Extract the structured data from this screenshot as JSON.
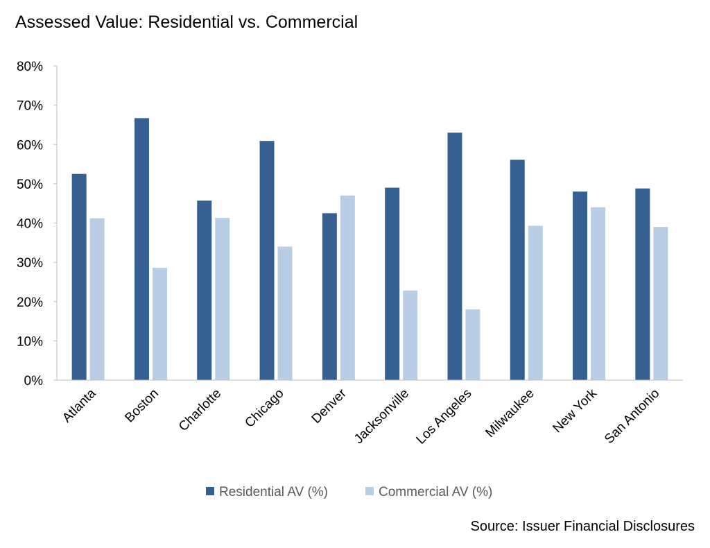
{
  "chart_data": {
    "type": "bar",
    "title": "Assessed Value: Residential vs. Commercial",
    "source": "Source: Issuer Financial Disclosures",
    "categories": [
      "Atlanta",
      "Boston",
      "Charlotte",
      "Chicago",
      "Denver",
      "Jacksonville",
      "Los Angeles",
      "Milwaukee",
      "New York",
      "San Antonio"
    ],
    "series": [
      {
        "name": "Residential AV (%)",
        "color": "#376092",
        "values": [
          52.5,
          66.7,
          45.7,
          60.9,
          42.5,
          49.0,
          63.0,
          56.1,
          48.0,
          48.8
        ]
      },
      {
        "name": "Commercial AV (%)",
        "color": "#B9CDE5",
        "values": [
          41.2,
          28.6,
          41.3,
          34.0,
          47.0,
          22.8,
          18.0,
          39.3,
          44.0,
          39.0
        ]
      }
    ],
    "ylim": [
      0,
      80
    ],
    "yticks": [
      0,
      10,
      20,
      30,
      40,
      50,
      60,
      70,
      80
    ],
    "ytick_labels": [
      "0%",
      "10%",
      "20%",
      "30%",
      "40%",
      "50%",
      "60%",
      "70%",
      "80%"
    ],
    "grid": false,
    "legend_position": "bottom"
  }
}
